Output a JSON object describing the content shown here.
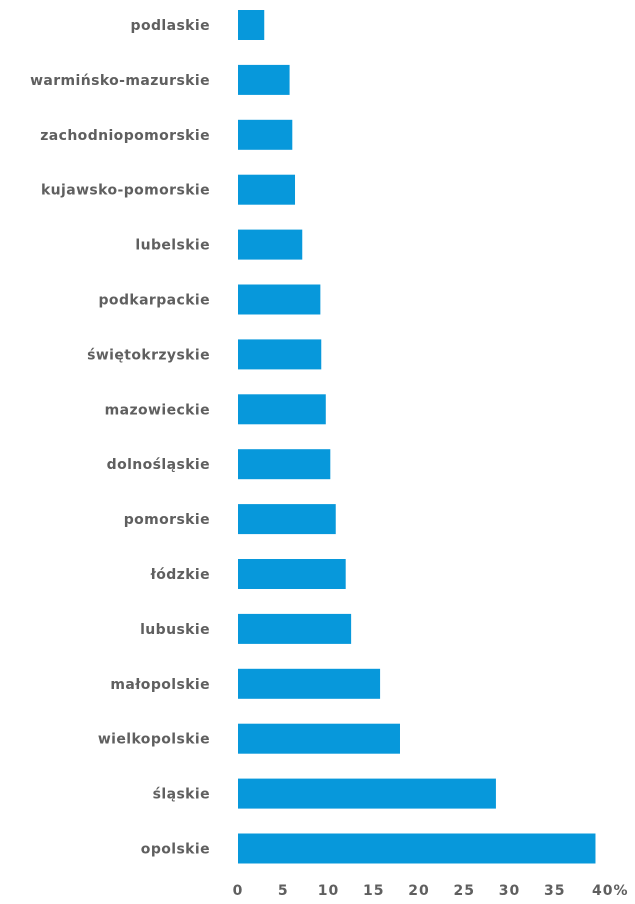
{
  "chart_data": {
    "type": "bar",
    "orientation": "horizontal",
    "title": "",
    "xlabel": "",
    "ylabel": "",
    "categories": [
      "podlaskie",
      "warmińsko-mazurskie",
      "zachodniopomorskie",
      "kujawsko-pomorskie",
      "lubelskie",
      "podkarpackie",
      "świętokrzyskie",
      "mazowieckie",
      "dolnośląskie",
      "pomorskie",
      "łódzkie",
      "lubuskie",
      "małopolskie",
      "wielkopolskie",
      "śląskie",
      "opolskie"
    ],
    "values": [
      2.9,
      5.7,
      6.0,
      6.3,
      7.1,
      9.1,
      9.2,
      9.7,
      10.2,
      10.8,
      11.9,
      12.5,
      15.7,
      17.9,
      28.5,
      39.5
    ],
    "xlim": [
      0,
      40
    ],
    "ticks": [
      "0",
      "5",
      "10",
      "15",
      "20",
      "25",
      "30",
      "35",
      "40%"
    ],
    "tick_values": [
      0,
      5,
      10,
      15,
      20,
      25,
      30,
      35,
      40
    ],
    "grid": false,
    "legend": "none",
    "colors": {
      "bar": "#0798db",
      "text": "#5f5f5f"
    }
  }
}
